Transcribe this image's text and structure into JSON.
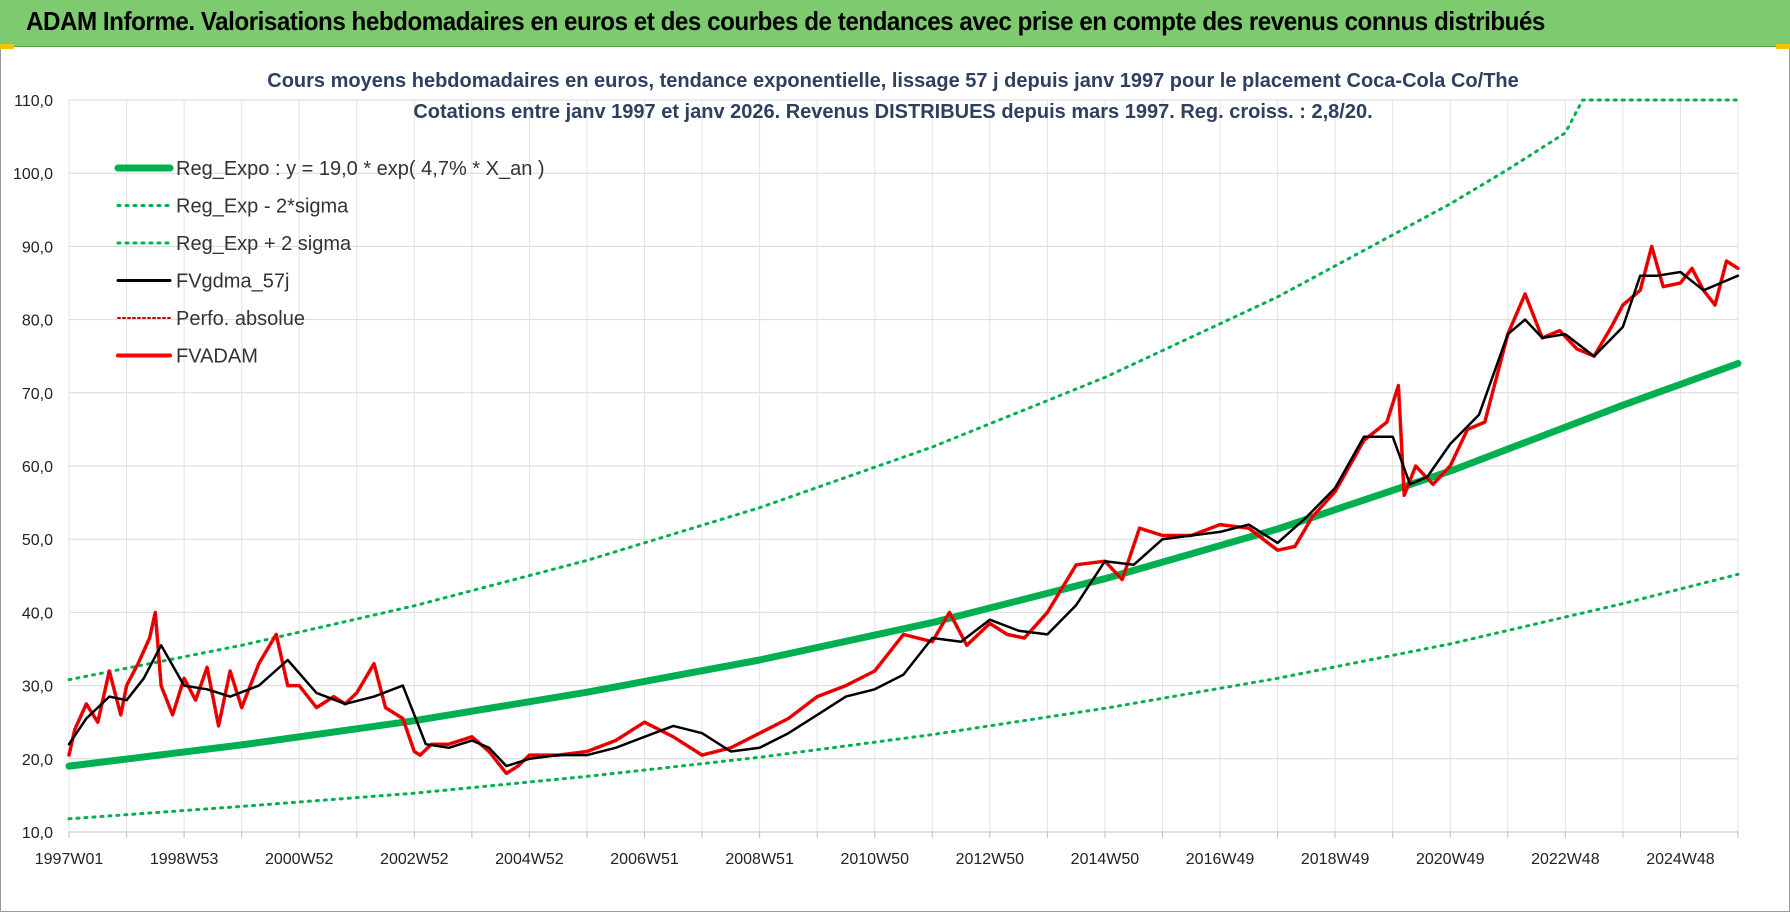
{
  "header": {
    "title": "ADAM Informe. Valorisations hebdomadaires en euros et des courbes de tendances avec prise en compte des revenus connus distribués"
  },
  "colors": {
    "header_bg": "#7dca6f",
    "reg_expo": "#00b050",
    "band": "#00b050",
    "fvgdma": "#000000",
    "perfo": "#c00000",
    "fvadam": "#ff0000"
  },
  "chart_data": {
    "type": "line",
    "title": "Cours moyens hebdomadaires en euros, tendance exponentielle, lissage 57 j depuis janv 1997 pour le placement Coca-Cola Co/The",
    "subtitle": "Cotations entre janv 1997 et janv 2026. Revenus DISTRIBUES depuis mars 1997.  Reg. croiss. : 2,8/20.",
    "xlim": [
      1997.0,
      2026.0
    ],
    "ylim": [
      10,
      110
    ],
    "grid": true,
    "legend_position": "top-left",
    "x_ticks": [
      {
        "x": 1997.0,
        "label": "1997W01"
      },
      {
        "x": 1999.0,
        "label": "1998W53"
      },
      {
        "x": 2001.0,
        "label": "2000W52"
      },
      {
        "x": 2003.0,
        "label": "2002W52"
      },
      {
        "x": 2005.0,
        "label": "2004W52"
      },
      {
        "x": 2007.0,
        "label": "2006W51"
      },
      {
        "x": 2009.0,
        "label": "2008W51"
      },
      {
        "x": 2011.0,
        "label": "2010W50"
      },
      {
        "x": 2013.0,
        "label": "2012W50"
      },
      {
        "x": 2015.0,
        "label": "2014W50"
      },
      {
        "x": 2017.0,
        "label": "2016W49"
      },
      {
        "x": 2019.0,
        "label": "2018W49"
      },
      {
        "x": 2021.0,
        "label": "2020W49"
      },
      {
        "x": 2023.0,
        "label": "2022W48"
      },
      {
        "x": 2025.0,
        "label": "2024W48"
      }
    ],
    "y_ticks": [
      {
        "v": 10,
        "label": "10,0"
      },
      {
        "v": 20,
        "label": "20,0"
      },
      {
        "v": 30,
        "label": "30,0"
      },
      {
        "v": 40,
        "label": "40,0"
      },
      {
        "v": 50,
        "label": "50,0"
      },
      {
        "v": 60,
        "label": "60,0"
      },
      {
        "v": 70,
        "label": "70,0"
      },
      {
        "v": 80,
        "label": "80,0"
      },
      {
        "v": 90,
        "label": "90,0"
      },
      {
        "v": 100,
        "label": "100,0"
      },
      {
        "v": 110,
        "label": "110,0"
      }
    ],
    "legend": [
      {
        "key": "reg_expo",
        "label": "Reg_Expo : y = 19,0 * exp( 4,7% *  X_an )",
        "style": "thick"
      },
      {
        "key": "reg_lo",
        "label": "Reg_Exp - 2*sigma",
        "style": "dotted"
      },
      {
        "key": "reg_hi",
        "label": "Reg_Exp + 2 sigma",
        "style": "dotted"
      },
      {
        "key": "fvgdma",
        "label": "FVgdma_57j",
        "style": "solid"
      },
      {
        "key": "perfo",
        "label": "Perfo. absolue",
        "style": "dotted-red"
      },
      {
        "key": "fvadam",
        "label": "FVADAM",
        "style": "red"
      }
    ],
    "series": [
      {
        "name": "Reg_Expo : y = 19,0 * exp( 4,7% *  X_an )",
        "x": [
          1997,
          2000,
          2003,
          2006,
          2009,
          2012,
          2015,
          2018,
          2021,
          2024,
          2026
        ],
        "values": [
          19.0,
          21.9,
          25.2,
          29.1,
          33.5,
          38.6,
          44.6,
          51.4,
          59.3,
          68.3,
          74.0
        ]
      },
      {
        "name": "Reg_Exp - 2*sigma",
        "x": [
          1997,
          2000,
          2003,
          2006,
          2009,
          2012,
          2015,
          2018,
          2021,
          2024,
          2026
        ],
        "values": [
          11.8,
          13.5,
          15.3,
          17.6,
          20.2,
          23.3,
          26.9,
          31.0,
          35.7,
          41.2,
          45.2
        ]
      },
      {
        "name": "Reg_Exp + 2 sigma",
        "x": [
          1997,
          2000,
          2003,
          2006,
          2009,
          2012,
          2015,
          2018,
          2021,
          2022,
          2023,
          2023.3,
          2026
        ],
        "values": [
          30.8,
          35.5,
          40.9,
          47.1,
          54.3,
          62.6,
          72.1,
          83.1,
          95.8,
          100.5,
          105.5,
          110.0,
          110.0
        ]
      },
      {
        "name": "FVgdma_57j",
        "x": [
          1997.0,
          1997.3,
          1997.7,
          1998.0,
          1998.3,
          1998.6,
          1999.0,
          1999.4,
          1999.8,
          2000.3,
          2000.8,
          2001.3,
          2001.8,
          2002.3,
          2002.8,
          2003.2,
          2003.6,
          2004.0,
          2004.3,
          2004.6,
          2005.0,
          2005.5,
          2006.0,
          2006.5,
          2007.0,
          2007.5,
          2008.0,
          2008.5,
          2009.0,
          2009.5,
          2010.0,
          2010.5,
          2011.0,
          2011.5,
          2012.0,
          2012.5,
          2013.0,
          2013.5,
          2014.0,
          2014.5,
          2015.0,
          2015.5,
          2016.0,
          2016.5,
          2017.0,
          2017.5,
          2018.0,
          2018.5,
          2019.0,
          2019.5,
          2020.0,
          2020.3,
          2020.6,
          2021.0,
          2021.5,
          2022.0,
          2022.3,
          2022.6,
          2023.0,
          2023.5,
          2024.0,
          2024.3,
          2024.6,
          2025.0,
          2025.4,
          2025.7,
          2026.0
        ],
        "values": [
          22.0,
          25.5,
          28.5,
          28.0,
          31.0,
          35.5,
          30.0,
          29.5,
          28.5,
          30.0,
          33.5,
          29.0,
          27.5,
          28.5,
          30.0,
          22.0,
          21.5,
          22.5,
          21.5,
          19.0,
          20.0,
          20.5,
          20.5,
          21.5,
          23.0,
          24.5,
          23.5,
          21.0,
          21.5,
          23.5,
          26.0,
          28.5,
          29.5,
          31.5,
          36.5,
          36.0,
          39.0,
          37.5,
          37.0,
          41.0,
          47.0,
          46.5,
          50.0,
          50.5,
          51.0,
          52.0,
          49.5,
          53.0,
          57.0,
          64.0,
          64.0,
          57.5,
          58.5,
          63.0,
          67.0,
          78.0,
          80.0,
          77.5,
          78.0,
          75.0,
          79.0,
          86.0,
          86.0,
          86.5,
          84.0,
          85.0,
          86.0
        ]
      },
      {
        "name": "FVADAM",
        "x": [
          1997.0,
          1997.1,
          1997.3,
          1997.5,
          1997.7,
          1997.9,
          1998.0,
          1998.2,
          1998.4,
          1998.5,
          1998.6,
          1998.8,
          1999.0,
          1999.2,
          1999.4,
          1999.6,
          1999.8,
          2000.0,
          2000.3,
          2000.6,
          2000.8,
          2001.0,
          2001.3,
          2001.6,
          2001.8,
          2002.0,
          2002.3,
          2002.5,
          2002.8,
          2003.0,
          2003.1,
          2003.3,
          2003.6,
          2004.0,
          2004.3,
          2004.6,
          2004.8,
          2005.0,
          2005.5,
          2006.0,
          2006.5,
          2007.0,
          2007.5,
          2008.0,
          2008.5,
          2009.0,
          2009.5,
          2010.0,
          2010.5,
          2011.0,
          2011.5,
          2012.0,
          2012.3,
          2012.6,
          2013.0,
          2013.3,
          2013.6,
          2014.0,
          2014.5,
          2015.0,
          2015.3,
          2015.6,
          2016.0,
          2016.5,
          2017.0,
          2017.5,
          2018.0,
          2018.3,
          2018.6,
          2019.0,
          2019.5,
          2019.9,
          2020.1,
          2020.2,
          2020.4,
          2020.7,
          2021.0,
          2021.3,
          2021.6,
          2022.0,
          2022.3,
          2022.6,
          2022.9,
          2023.2,
          2023.5,
          2023.8,
          2024.0,
          2024.3,
          2024.5,
          2024.7,
          2025.0,
          2025.2,
          2025.4,
          2025.6,
          2025.8,
          2026.0
        ],
        "values": [
          20.5,
          24.0,
          27.5,
          25.0,
          32.0,
          26.0,
          30.0,
          33.0,
          36.5,
          40.0,
          30.0,
          26.0,
          31.0,
          28.0,
          32.5,
          24.5,
          32.0,
          27.0,
          33.0,
          37.0,
          30.0,
          30.0,
          27.0,
          28.5,
          27.5,
          29.0,
          33.0,
          27.0,
          25.5,
          21.0,
          20.5,
          22.0,
          22.0,
          23.0,
          21.0,
          18.0,
          19.0,
          20.5,
          20.5,
          21.0,
          22.5,
          25.0,
          23.0,
          20.5,
          21.5,
          23.5,
          25.5,
          28.5,
          30.0,
          32.0,
          37.0,
          36.0,
          40.0,
          35.5,
          38.5,
          37.0,
          36.5,
          40.0,
          46.5,
          47.0,
          44.5,
          51.5,
          50.5,
          50.5,
          52.0,
          51.5,
          48.5,
          49.0,
          53.0,
          56.5,
          63.5,
          66.0,
          71.0,
          56.0,
          60.0,
          57.5,
          60.0,
          65.0,
          66.0,
          78.0,
          83.5,
          77.5,
          78.5,
          76.0,
          75.0,
          79.0,
          82.0,
          84.0,
          90.0,
          84.5,
          85.0,
          87.0,
          84.0,
          82.0,
          88.0,
          87.0
        ]
      },
      {
        "name": "Perfo. absolue",
        "x": [
          1997.0,
          1997.1,
          1997.3,
          1997.5,
          1997.7,
          1997.9,
          1998.0,
          1998.2,
          1998.4,
          1998.5,
          1998.6,
          1998.8,
          1999.0,
          1999.2,
          1999.4,
          1999.6,
          1999.8,
          2000.0,
          2000.3,
          2000.6,
          2000.8,
          2001.0,
          2001.3,
          2001.6,
          2001.8,
          2002.0,
          2002.3,
          2002.5,
          2002.8,
          2003.0,
          2003.1,
          2003.3,
          2003.6,
          2004.0,
          2004.3,
          2004.6,
          2004.8,
          2005.0,
          2005.5,
          2006.0,
          2006.5,
          2007.0,
          2007.5,
          2008.0,
          2008.5,
          2009.0,
          2009.5,
          2010.0,
          2010.5,
          2011.0,
          2011.5,
          2012.0,
          2012.3,
          2012.6,
          2013.0,
          2013.3,
          2013.6,
          2014.0,
          2014.5,
          2015.0,
          2015.3,
          2015.6,
          2016.0,
          2016.5,
          2017.0,
          2017.5,
          2018.0,
          2018.3,
          2018.6,
          2019.0,
          2019.5,
          2019.9,
          2020.1,
          2020.2,
          2020.4,
          2020.7,
          2021.0,
          2021.3,
          2021.6,
          2022.0,
          2022.3,
          2022.6,
          2022.9,
          2023.2,
          2023.5,
          2023.8,
          2024.0,
          2024.3,
          2024.5,
          2024.7,
          2025.0,
          2025.2,
          2025.4,
          2025.6,
          2025.8,
          2026.0
        ],
        "values": [
          20.5,
          24.0,
          27.5,
          25.0,
          32.0,
          26.0,
          30.0,
          33.0,
          36.5,
          40.0,
          30.0,
          26.0,
          31.0,
          28.0,
          32.5,
          24.5,
          32.0,
          27.0,
          33.0,
          37.0,
          30.0,
          30.0,
          27.0,
          28.5,
          27.5,
          29.0,
          33.0,
          27.0,
          25.5,
          21.0,
          20.5,
          22.0,
          22.0,
          23.0,
          21.0,
          18.0,
          19.0,
          20.5,
          20.5,
          21.0,
          22.5,
          25.0,
          23.0,
          20.5,
          21.5,
          23.5,
          25.5,
          28.5,
          30.0,
          32.0,
          37.0,
          36.0,
          40.0,
          35.5,
          38.5,
          37.0,
          36.5,
          40.0,
          46.5,
          47.0,
          44.5,
          51.5,
          50.5,
          50.5,
          52.0,
          51.5,
          48.5,
          49.0,
          53.0,
          56.5,
          63.5,
          66.0,
          71.0,
          56.0,
          60.0,
          57.5,
          60.0,
          65.0,
          66.0,
          78.0,
          83.5,
          77.5,
          78.5,
          76.0,
          75.0,
          79.0,
          82.0,
          84.0,
          90.0,
          84.5,
          85.0,
          87.0,
          84.0,
          82.0,
          88.0,
          87.0
        ]
      }
    ]
  }
}
